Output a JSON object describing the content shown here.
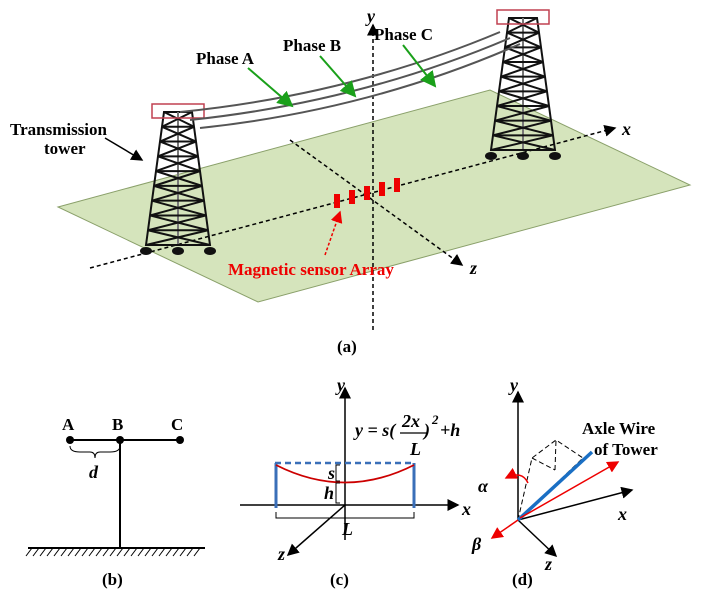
{
  "panel_a": {
    "label": "(a)",
    "phase_labels": [
      "Phase A",
      "Phase B",
      "Phase C"
    ],
    "tower_label": [
      "Transmission",
      "tower"
    ],
    "sensor_label": "Magnetic sensor Array",
    "axes": {
      "x": "x",
      "y": "y",
      "z": "z"
    }
  },
  "panel_b": {
    "label": "(b)",
    "points": [
      "A",
      "B",
      "C"
    ],
    "spacing": "d"
  },
  "panel_c": {
    "label": "(c)",
    "equation": {
      "lhs": "y = s(",
      "numerator": "2x",
      "denominator": "L",
      "close": ")",
      "power": "2",
      "tail": " +h"
    },
    "sag": "s",
    "height": "h",
    "span": "L",
    "axes": {
      "x": "x",
      "y": "y",
      "z": "z"
    }
  },
  "panel_d": {
    "label": "(d)",
    "angles": [
      "α",
      "β"
    ],
    "wire_label": [
      "Axle Wire",
      "of Tower"
    ],
    "axes": {
      "x": "x",
      "y": "y",
      "z": "z"
    }
  }
}
